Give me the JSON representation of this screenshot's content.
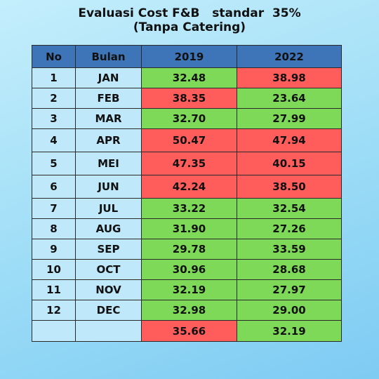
{
  "title_line1": "Evaluasi Cost F&B   standar  35%",
  "title_line2": "(Tanpa Catering)",
  "headers": [
    "No",
    "Bulan",
    "2019",
    "2022"
  ],
  "rows": [
    {
      "no": "1",
      "bulan": "JAN",
      "y2019": "32.48",
      "y2022": "38.98",
      "s2019": "good",
      "s2022": "bad"
    },
    {
      "no": "2",
      "bulan": "FEB",
      "y2019": "38.35",
      "y2022": "23.64",
      "s2019": "bad",
      "s2022": "good"
    },
    {
      "no": "3",
      "bulan": "MAR",
      "y2019": "32.70",
      "y2022": "27.99",
      "s2019": "good",
      "s2022": "good"
    },
    {
      "no": "4",
      "bulan": "APR",
      "y2019": "50.47",
      "y2022": "47.94",
      "s2019": "bad",
      "s2022": "bad"
    },
    {
      "no": "5",
      "bulan": "MEI",
      "y2019": "47.35",
      "y2022": "40.15",
      "s2019": "bad",
      "s2022": "bad"
    },
    {
      "no": "6",
      "bulan": "JUN",
      "y2019": "42.24",
      "y2022": "38.50",
      "s2019": "bad",
      "s2022": "bad"
    },
    {
      "no": "7",
      "bulan": "JUL",
      "y2019": "33.22",
      "y2022": "32.54",
      "s2019": "good",
      "s2022": "good"
    },
    {
      "no": "8",
      "bulan": "AUG",
      "y2019": "31.90",
      "y2022": "27.26",
      "s2019": "good",
      "s2022": "good"
    },
    {
      "no": "9",
      "bulan": "SEP",
      "y2019": "29.78",
      "y2022": "33.59",
      "s2019": "good",
      "s2022": "good"
    },
    {
      "no": "10",
      "bulan": "OCT",
      "y2019": "30.96",
      "y2022": "28.68",
      "s2019": "good",
      "s2022": "good"
    },
    {
      "no": "11",
      "bulan": "NOV",
      "y2019": "32.19",
      "y2022": "27.97",
      "s2019": "good",
      "s2022": "good"
    },
    {
      "no": "12",
      "bulan": "DEC",
      "y2019": "32.98",
      "y2022": "29.00",
      "s2019": "good",
      "s2022": "good"
    }
  ],
  "total": {
    "y2019": "35.66",
    "y2022": "32.19",
    "s2019": "bad",
    "s2022": "good"
  },
  "colors": {
    "header": "#3e74b8",
    "good": "#7dd957",
    "bad": "#ff5c5c",
    "plain": "#bfe9fb"
  }
}
